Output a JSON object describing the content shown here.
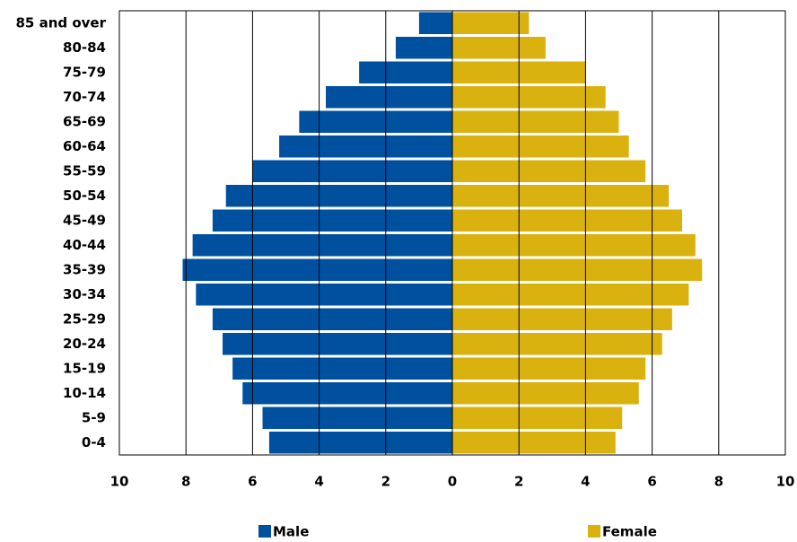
{
  "chart_data": {
    "type": "pyramid",
    "categories": [
      "85 and over",
      "80-84",
      "75-79",
      "70-74",
      "65-69",
      "60-64",
      "55-59",
      "50-54",
      "45-49",
      "40-44",
      "35-39",
      "30-34",
      "25-29",
      "20-24",
      "15-19",
      "10-14",
      "5-9",
      "0-4"
    ],
    "series": [
      {
        "name": "Male",
        "color": "#0050a0",
        "side": "left",
        "values": [
          1.0,
          1.7,
          2.8,
          3.8,
          4.6,
          5.2,
          6.0,
          6.8,
          7.2,
          7.8,
          8.1,
          7.7,
          7.2,
          6.9,
          6.6,
          6.3,
          5.7,
          5.5
        ]
      },
      {
        "name": "Female",
        "color": "#dab20f",
        "side": "right",
        "values": [
          2.3,
          2.8,
          4.0,
          4.6,
          5.0,
          5.3,
          5.8,
          6.5,
          6.9,
          7.3,
          7.5,
          7.1,
          6.6,
          6.3,
          5.8,
          5.6,
          5.1,
          4.9
        ]
      }
    ],
    "xlim": [
      -10,
      10
    ],
    "xticks": [
      {
        "value": -10,
        "label": "10"
      },
      {
        "value": -8,
        "label": "8"
      },
      {
        "value": -6,
        "label": "6"
      },
      {
        "value": -4,
        "label": "4"
      },
      {
        "value": -2,
        "label": "2"
      },
      0,
      2,
      4,
      6,
      8,
      10
    ],
    "grid": true
  }
}
